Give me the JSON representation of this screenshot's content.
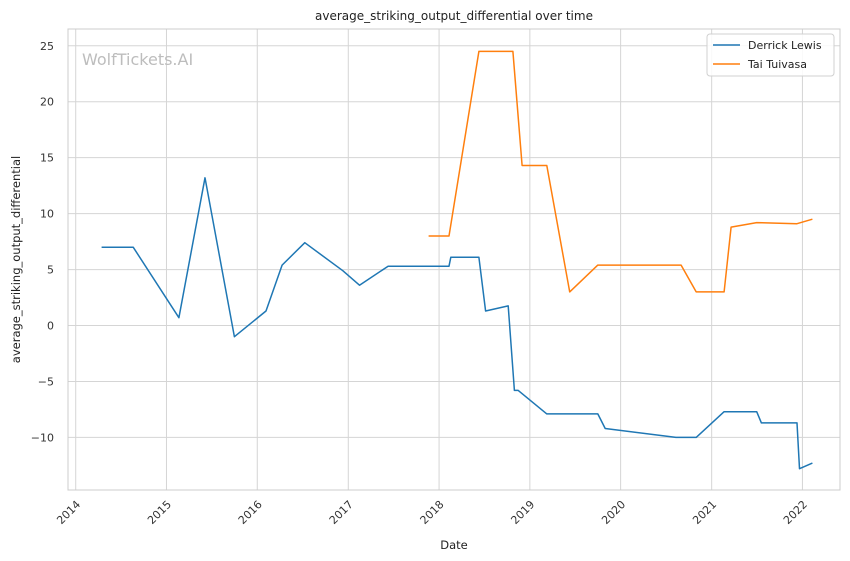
{
  "chart_data": {
    "type": "line",
    "title": "average_striking_output_differential over time",
    "xlabel": "Date",
    "ylabel": "average_striking_output_differential",
    "watermark": "WolfTickets.AI",
    "x_range": [
      "2013-12-01",
      "2022-06-01"
    ],
    "x_ticks": [
      "2014",
      "2015",
      "2016",
      "2017",
      "2018",
      "2019",
      "2020",
      "2021",
      "2022"
    ],
    "ylim": [
      -14.7,
      26.5
    ],
    "y_ticks": [
      -10,
      -5,
      0,
      5,
      10,
      15,
      20,
      25
    ],
    "y_tick_labels": [
      "−10",
      "−5",
      "0",
      "5",
      "10",
      "15",
      "20",
      "25"
    ],
    "grid": true,
    "legend_position": "top-right",
    "series": [
      {
        "name": "Derrick Lewis",
        "color": "#1f77b4",
        "points": [
          [
            "2014-04-15",
            7.0
          ],
          [
            "2014-08-20",
            7.0
          ],
          [
            "2015-02-20",
            0.7
          ],
          [
            "2015-06-05",
            13.2
          ],
          [
            "2015-10-01",
            -1.0
          ],
          [
            "2016-02-05",
            1.3
          ],
          [
            "2016-04-10",
            5.4
          ],
          [
            "2016-07-10",
            7.4
          ],
          [
            "2016-12-10",
            4.9
          ],
          [
            "2017-02-15",
            3.6
          ],
          [
            "2017-06-10",
            5.3
          ],
          [
            "2018-02-10",
            5.3
          ],
          [
            "2018-02-17",
            6.1
          ],
          [
            "2018-06-10",
            6.1
          ],
          [
            "2018-07-07",
            1.3
          ],
          [
            "2018-10-06",
            1.75
          ],
          [
            "2018-10-31",
            -5.8
          ],
          [
            "2018-11-15",
            -5.8
          ],
          [
            "2019-03-10",
            -7.9
          ],
          [
            "2019-10-01",
            -7.9
          ],
          [
            "2019-10-31",
            -9.2
          ],
          [
            "2020-08-10",
            -10.0
          ],
          [
            "2020-10-31",
            -10.0
          ],
          [
            "2021-02-20",
            -7.7
          ],
          [
            "2021-07-01",
            -7.7
          ],
          [
            "2021-07-20",
            -8.7
          ],
          [
            "2021-12-10",
            -8.7
          ],
          [
            "2021-12-20",
            -12.8
          ],
          [
            "2022-02-10",
            -12.3
          ]
        ]
      },
      {
        "name": "Tai Tuivasa",
        "color": "#ff7f0e",
        "points": [
          [
            "2017-11-20",
            8.0
          ],
          [
            "2018-02-10",
            8.0
          ],
          [
            "2018-06-10",
            24.5
          ],
          [
            "2018-10-25",
            24.5
          ],
          [
            "2018-12-01",
            14.3
          ],
          [
            "2019-03-10",
            14.3
          ],
          [
            "2019-06-10",
            3.0
          ],
          [
            "2019-10-01",
            5.4
          ],
          [
            "2020-08-31",
            5.4
          ],
          [
            "2020-10-31",
            3.0
          ],
          [
            "2021-02-20",
            3.0
          ],
          [
            "2021-03-20",
            8.8
          ],
          [
            "2021-07-01",
            9.2
          ],
          [
            "2021-12-10",
            9.1
          ],
          [
            "2022-02-10",
            9.5
          ]
        ]
      }
    ]
  }
}
